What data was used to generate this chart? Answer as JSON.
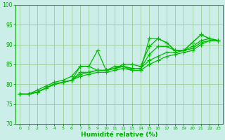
{
  "background_color": "#cceee8",
  "grid_color": "#99cc99",
  "line_color": "#00bb00",
  "xlabel": "Humidité relative (%)",
  "xlabel_color": "#00aa00",
  "tick_color": "#00aa00",
  "xlim": [
    -0.5,
    23.5
  ],
  "ylim": [
    70,
    100
  ],
  "yticks": [
    70,
    75,
    80,
    85,
    90,
    95,
    100
  ],
  "xticks": [
    0,
    1,
    2,
    3,
    4,
    5,
    6,
    7,
    8,
    9,
    10,
    11,
    12,
    13,
    14,
    15,
    16,
    17,
    18,
    19,
    20,
    21,
    22,
    23
  ],
  "lines": [
    [
      77.5,
      77.5,
      78.0,
      79.0,
      80.0,
      80.5,
      81.0,
      84.5,
      84.5,
      88.5,
      83.5,
      84.5,
      84.5,
      83.5,
      83.5,
      91.5,
      91.5,
      90.5,
      88.5,
      88.5,
      90.5,
      92.5,
      91.5,
      91.0
    ],
    [
      77.5,
      77.5,
      78.0,
      79.0,
      80.0,
      80.5,
      81.0,
      82.0,
      82.5,
      83.0,
      83.0,
      83.5,
      84.0,
      83.5,
      83.5,
      85.0,
      86.0,
      87.0,
      87.5,
      88.0,
      88.5,
      90.0,
      91.0,
      91.0
    ],
    [
      77.5,
      77.5,
      78.0,
      79.0,
      80.0,
      80.5,
      81.0,
      82.5,
      83.0,
      83.5,
      83.5,
      84.0,
      84.5,
      84.0,
      84.0,
      86.0,
      87.0,
      88.0,
      88.0,
      88.5,
      89.0,
      90.5,
      91.0,
      91.0
    ],
    [
      77.5,
      77.5,
      78.0,
      79.0,
      80.0,
      80.5,
      81.0,
      83.0,
      83.0,
      83.5,
      83.5,
      84.0,
      84.5,
      84.0,
      84.0,
      87.5,
      89.5,
      89.5,
      88.5,
      88.5,
      89.5,
      91.0,
      91.5,
      91.0
    ],
    [
      77.5,
      77.5,
      78.5,
      79.5,
      80.5,
      81.0,
      82.0,
      84.5,
      84.5,
      83.5,
      83.5,
      84.0,
      85.0,
      85.0,
      84.5,
      89.5,
      91.5,
      90.5,
      88.5,
      88.5,
      90.5,
      92.5,
      91.5,
      91.0
    ]
  ],
  "lw": 0.9,
  "marker_size": 4
}
